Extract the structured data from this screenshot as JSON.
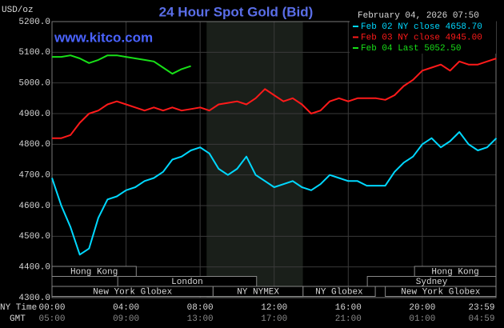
{
  "chart_data": {
    "type": "line",
    "title": "24 Hour Spot Gold (Bid)",
    "subtitle": "February 04, 2026 07:50",
    "watermark": "www.kitco.com",
    "y_label": "USD/oz",
    "x_label": "NY Time",
    "x2_label": "GMT",
    "x": [
      0,
      0.5,
      1,
      1.5,
      2,
      2.5,
      3,
      3.5,
      4,
      4.5,
      5,
      5.5,
      6,
      6.5,
      7,
      7.5,
      8,
      8.5,
      9,
      9.5,
      10,
      10.5,
      11,
      11.5,
      12,
      12.5,
      13,
      13.5,
      14,
      14.5,
      15,
      15.5,
      16,
      16.5,
      17,
      17.5,
      18,
      18.5,
      19,
      19.5,
      20,
      20.5,
      21,
      21.5,
      22,
      22.5,
      23,
      23.5,
      24
    ],
    "series": [
      {
        "name": "Feb 02 NY close 4658.70",
        "color": "#00d8ff",
        "values": [
          4690,
          4600,
          4530,
          4440,
          4460,
          4560,
          4620,
          4630,
          4650,
          4660,
          4680,
          4690,
          4710,
          4750,
          4760,
          4780,
          4790,
          4770,
          4720,
          4700,
          4720,
          4760,
          4700,
          4680,
          4660,
          4670,
          4680,
          4660,
          4650,
          4670,
          4700,
          4690,
          4680,
          4680,
          4665,
          4665,
          4665,
          4710,
          4740,
          4760,
          4800,
          4820,
          4790,
          4810,
          4840,
          4800,
          4780,
          4790,
          4820
        ]
      },
      {
        "name": "Feb 03 NY close 4945.00",
        "color": "#ff1a1a",
        "values": [
          4820,
          4820,
          4830,
          4870,
          4900,
          4910,
          4930,
          4940,
          4930,
          4920,
          4910,
          4920,
          4910,
          4920,
          4910,
          4915,
          4920,
          4910,
          4930,
          4935,
          4940,
          4930,
          4950,
          4980,
          4960,
          4940,
          4950,
          4930,
          4900,
          4910,
          4940,
          4950,
          4940,
          4950,
          4950,
          4950,
          4945,
          4960,
          4990,
          5010,
          5040,
          5050,
          5060,
          5040,
          5070,
          5060,
          5060,
          5070,
          5080
        ]
      },
      {
        "name": "Feb 04 Last 5052.50",
        "color": "#18e018",
        "values": [
          5085,
          5085,
          5090,
          5080,
          5065,
          5075,
          5090,
          5090,
          5085,
          5080,
          5075,
          5070,
          5050,
          5030,
          5045,
          5055,
          null,
          null,
          null,
          null,
          null,
          null,
          null,
          null,
          null,
          null,
          null,
          null,
          null,
          null,
          null,
          null,
          null,
          null,
          null,
          null,
          null,
          null,
          null,
          null,
          null,
          null,
          null,
          null,
          null,
          null,
          null,
          null,
          null
        ]
      }
    ],
    "xlim": [
      0,
      23.98
    ],
    "ylim": [
      4300,
      5200
    ],
    "xticks": [
      {
        "value": 0,
        "label": "00:00"
      },
      {
        "value": 4,
        "label": "04:00"
      },
      {
        "value": 8,
        "label": "08:00"
      },
      {
        "value": 12,
        "label": "12:00"
      },
      {
        "value": 16,
        "label": "16:00"
      },
      {
        "value": 20,
        "label": "20:00"
      },
      {
        "value": 23.98,
        "label": "23:59"
      }
    ],
    "x2ticks": [
      {
        "value": 0,
        "label": "05:00"
      },
      {
        "value": 4,
        "label": "09:00"
      },
      {
        "value": 8,
        "label": "13:00"
      },
      {
        "value": 12,
        "label": "17:00"
      },
      {
        "value": 16,
        "label": "21:00"
      },
      {
        "value": 20,
        "label": "01:00"
      },
      {
        "value": 23.98,
        "label": "04:59"
      }
    ],
    "yticks": [
      {
        "value": 5200,
        "label": "5200.0"
      },
      {
        "value": 5100,
        "label": "5100.0"
      },
      {
        "value": 5000,
        "label": "5000.0"
      },
      {
        "value": 4900,
        "label": "4900.0"
      },
      {
        "value": 4800,
        "label": "4800.0"
      },
      {
        "value": 4700,
        "label": "4700.0"
      },
      {
        "value": 4600,
        "label": "4600.0"
      },
      {
        "value": 4500,
        "label": "4500.0"
      },
      {
        "value": 4400,
        "label": "4400.0"
      },
      {
        "value": 4300,
        "label": "4300.0"
      }
    ],
    "grid": true,
    "highlight": [
      8.35,
      13.55
    ],
    "session_rows": [
      [
        {
          "name": "Hong Kong",
          "start": 0,
          "end": 4.55
        },
        {
          "name": "Hong Kong",
          "start": 19.58,
          "end": 23.98
        }
      ],
      [
        {
          "name": "London",
          "start": 3.55,
          "end": 11.05
        },
        {
          "name": "Sydney",
          "start": 17.03,
          "end": 23.98
        }
      ],
      [
        {
          "name": "New York Globex",
          "start": 0,
          "end": 8.7
        },
        {
          "name": "NY NYMEX",
          "start": 8.7,
          "end": 13.56
        },
        {
          "name": "NY Globex",
          "start": 13.56,
          "end": 17.46
        },
        {
          "name": "New York Globex",
          "start": 18.0,
          "end": 23.98
        }
      ]
    ]
  }
}
